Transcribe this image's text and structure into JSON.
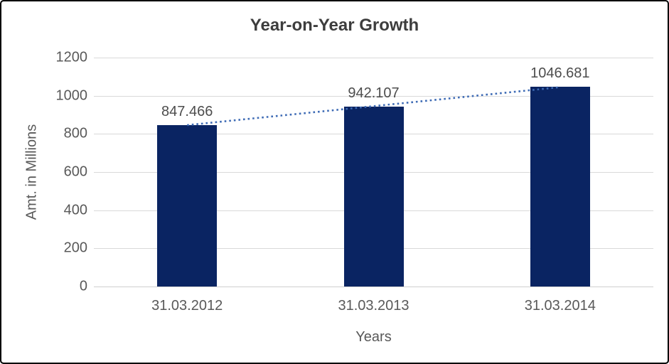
{
  "window": {
    "background_color": "#ffffff",
    "border_color": "#000000"
  },
  "chart_data": {
    "type": "bar",
    "title": "Year-on-Year Growth",
    "categories": [
      "31.03.2012",
      "31.03.2013",
      "31.03.2014"
    ],
    "values": [
      847.466,
      942.107,
      1046.681
    ],
    "data_labels": [
      "847.466",
      "942.107",
      "1046.681"
    ],
    "xlabel": "Years",
    "ylabel": "Amt. in Millions",
    "ylim": [
      0,
      1200
    ],
    "yticks": [
      0,
      200,
      400,
      600,
      800,
      1000,
      1200
    ],
    "grid": true,
    "legend_position": "none",
    "bar_color": "#0a2462",
    "trendline": {
      "type": "linear",
      "style": "dotted",
      "color": "#3e6bb5"
    },
    "gridline_color": "#d9d9d9",
    "axis_text_color": "#595959",
    "data_label_color": "#4d4d4d",
    "title_color": "#3d3d3d"
  }
}
